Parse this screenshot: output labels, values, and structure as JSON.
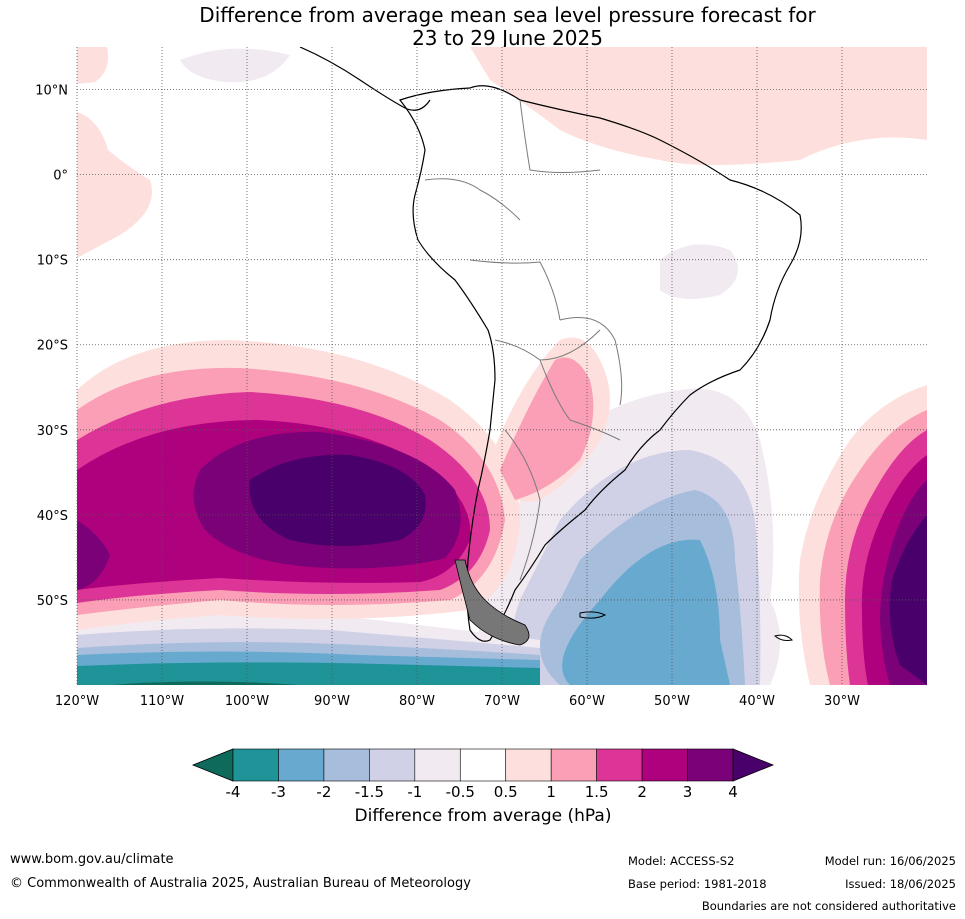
{
  "title": {
    "line1": "Difference from average mean sea level pressure forecast for",
    "line2": "23 to 29 June 2025"
  },
  "map": {
    "projection": "equirectangular",
    "lon_range": [
      -120,
      -20
    ],
    "lat_range": [
      -60,
      15
    ],
    "lat_labels": [
      "10°N",
      "0°",
      "10°S",
      "20°S",
      "30°S",
      "40°S",
      "50°S"
    ],
    "lon_labels": [
      "120°W",
      "110°W",
      "100°W",
      "90°W",
      "80°W",
      "70°W",
      "60°W",
      "50°W",
      "40°W",
      "30°W"
    ],
    "lat_values": [
      10,
      0,
      -10,
      -20,
      -30,
      -40,
      -50
    ],
    "lon_values": [
      -120,
      -110,
      -100,
      -90,
      -80,
      -70,
      -60,
      -50,
      -40,
      -30
    ]
  },
  "colorbar": {
    "title": "Difference from average (hPa)",
    "tick_labels": [
      "-4",
      "-3",
      "-2",
      "-1.5",
      "-1",
      "-0.5",
      "0.5",
      "1",
      "1.5",
      "2",
      "3",
      "4"
    ],
    "colors": [
      "#0e6b5c",
      "#1e9498",
      "#67a9cf",
      "#a6bddb",
      "#d0d1e6",
      "#f1eaf1",
      "#ffffff",
      "#fde0dd",
      "#fa9fb5",
      "#dd3497",
      "#ae017e",
      "#7a0177",
      "#49006a"
    ]
  },
  "footer": {
    "url": "www.bom.gov.au/climate",
    "copyright": "© Commonwealth of Australia 2025, Australian Bureau of Meteorology",
    "model": "Model: ACCESS-S2",
    "base_period": "Base period: 1981-2018",
    "model_run": "Model run: 16/06/2025",
    "issued": "Issued: 18/06/2025",
    "disclaimer": "Boundaries are not considered authoritative"
  }
}
